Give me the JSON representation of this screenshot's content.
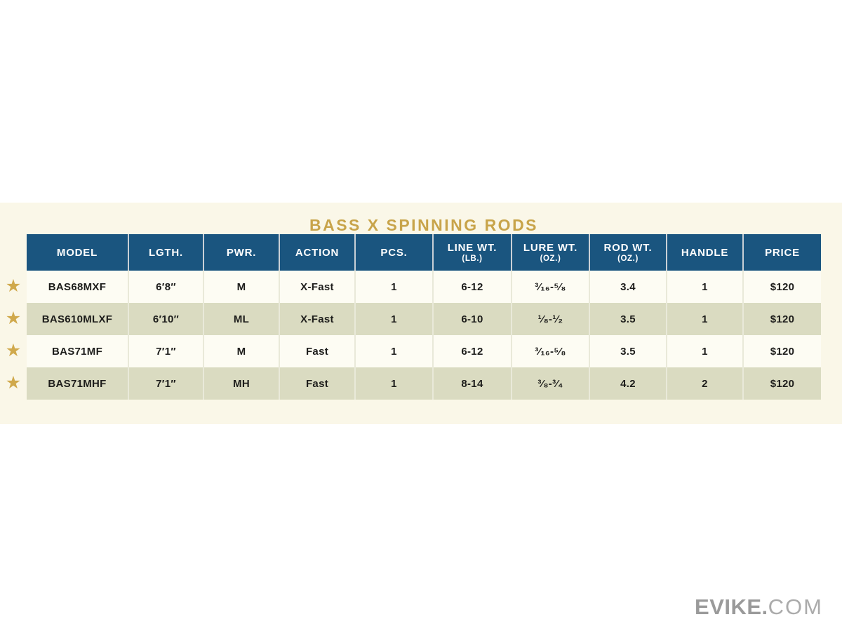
{
  "title": "BASS X SPINNING RODS",
  "colors": {
    "panel_cream": "#faf7e8",
    "header_blue": "#1a557f",
    "row_cream": "#fdfcf3",
    "row_beige": "#dadbc1",
    "title_gold": "#c8a44a",
    "star_gold": "#d0a94c",
    "logo_gray": "#9a9a9a"
  },
  "icons": {
    "star_glyph": "★",
    "star_meaning": "featured-model-star"
  },
  "table": {
    "columns": [
      {
        "key": "model",
        "label": "MODEL",
        "sub": ""
      },
      {
        "key": "lgth",
        "label": "LGTH.",
        "sub": ""
      },
      {
        "key": "pwr",
        "label": "PWR.",
        "sub": ""
      },
      {
        "key": "action",
        "label": "ACTION",
        "sub": ""
      },
      {
        "key": "pcs",
        "label": "PCS.",
        "sub": ""
      },
      {
        "key": "line-wt",
        "label": "LINE WT.",
        "sub": "(LB.)"
      },
      {
        "key": "lure-wt",
        "label": "LURE WT.",
        "sub": "(OZ.)"
      },
      {
        "key": "rod-wt",
        "label": "ROD WT.",
        "sub": "(OZ.)"
      },
      {
        "key": "handle",
        "label": "HANDLE",
        "sub": ""
      },
      {
        "key": "price",
        "label": "PRICE",
        "sub": ""
      }
    ],
    "rows": [
      {
        "featured": true,
        "cells": [
          "BAS68MXF",
          "6′8″",
          "M",
          "X-Fast",
          "1",
          "6-12",
          "³⁄₁₆-⁵⁄₈",
          "3.4",
          "1",
          "$120"
        ]
      },
      {
        "featured": true,
        "cells": [
          "BAS610MLXF",
          "6′10″",
          "ML",
          "X-Fast",
          "1",
          "6-10",
          "¹⁄₈-¹⁄₂",
          "3.5",
          "1",
          "$120"
        ]
      },
      {
        "featured": true,
        "cells": [
          "BAS71MF",
          "7′1″",
          "M",
          "Fast",
          "1",
          "6-12",
          "³⁄₁₆-⁵⁄₈",
          "3.5",
          "1",
          "$120"
        ]
      },
      {
        "featured": true,
        "cells": [
          "BAS71MHF",
          "7′1″",
          "MH",
          "Fast",
          "1",
          "8-14",
          "³⁄₈-³⁄₄",
          "4.2",
          "2",
          "$120"
        ]
      }
    ]
  },
  "footer": {
    "logo_bold": "EVIKE.",
    "logo_light": "COM"
  }
}
